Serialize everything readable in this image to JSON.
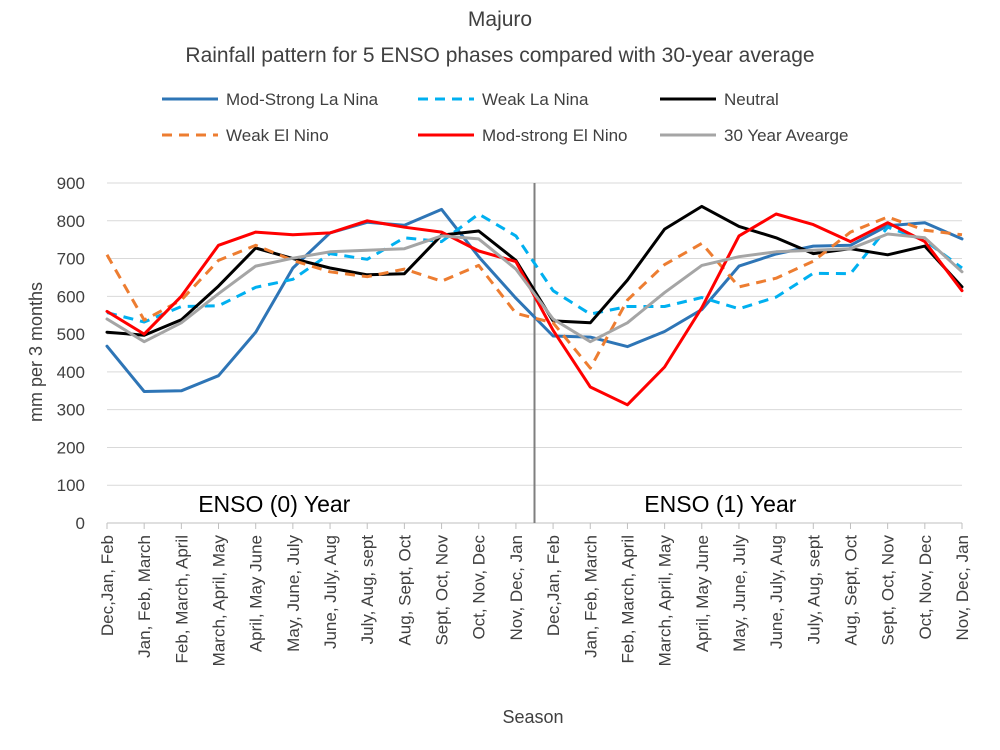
{
  "chart_data": {
    "type": "line",
    "title": "Majuro",
    "subtitle": "Rainfall pattern for 5 ENSO phases compared with 30-year average",
    "xlabel": "Season",
    "ylabel": "mm per 3 months",
    "ylim": [
      0,
      900
    ],
    "yticks": [
      0,
      100,
      200,
      300,
      400,
      500,
      600,
      700,
      800,
      900
    ],
    "grid": true,
    "legend_position": "top",
    "categories": [
      "Dec,Jan, Feb",
      "Jan, Feb, March",
      "Feb, March, April",
      "March, April, May",
      "April, May June",
      "May, June, July",
      "June, July, Aug",
      "July, Aug, sept",
      "Aug, Sept, Oct",
      "Sept, Oct, Nov",
      "Oct, Nov, Dec",
      "Nov, Dec, Jan",
      "Dec,Jan, Feb",
      "Jan, Feb, March",
      "Feb, March, April",
      "March, April, May",
      "April, May June",
      "May, June, July",
      "June, July, Aug",
      "July, Aug, sept",
      "Aug, Sept, Oct",
      "Sept, Oct, Nov",
      "Oct, Nov, Dec",
      "Nov, Dec, Jan"
    ],
    "annotations": [
      {
        "text": "ENSO (0) Year",
        "category_index": 4.5
      },
      {
        "text": "ENSO (1) Year",
        "category_index": 16.5
      }
    ],
    "divider_between_categories": [
      11,
      12
    ],
    "series": [
      {
        "name": "Mod-Strong La Nina",
        "color": "#2E75B6",
        "dash": "solid",
        "values": [
          468,
          348,
          350,
          390,
          505,
          675,
          768,
          796,
          788,
          830,
          705,
          595,
          495,
          492,
          467,
          507,
          565,
          680,
          712,
          733,
          735,
          787,
          795,
          752
        ]
      },
      {
        "name": "Weak La Nina",
        "color": "#00B0F0",
        "dash": "dashed",
        "values": [
          557,
          532,
          573,
          575,
          624,
          645,
          713,
          698,
          755,
          745,
          818,
          760,
          615,
          553,
          573,
          573,
          597,
          567,
          598,
          661,
          660,
          783,
          748,
          675
        ]
      },
      {
        "name": "Neutral",
        "color": "#000000",
        "dash": "solid",
        "values": [
          505,
          497,
          538,
          627,
          728,
          700,
          675,
          657,
          660,
          762,
          773,
          695,
          535,
          530,
          643,
          778,
          838,
          785,
          755,
          713,
          726,
          710,
          733,
          625
        ]
      },
      {
        "name": "Weak El Nino",
        "color": "#ED7D31",
        "dash": "dashed",
        "values": [
          710,
          537,
          590,
          695,
          735,
          695,
          665,
          652,
          672,
          640,
          682,
          555,
          530,
          410,
          590,
          684,
          740,
          625,
          648,
          693,
          770,
          810,
          775,
          763
        ]
      },
      {
        "name": "Mod-strong El Nino",
        "color": "#FF0000",
        "dash": "solid",
        "values": [
          560,
          500,
          600,
          735,
          770,
          763,
          768,
          800,
          783,
          770,
          720,
          692,
          510,
          360,
          313,
          413,
          570,
          760,
          818,
          790,
          745,
          795,
          745,
          615
        ]
      },
      {
        "name": "30 Year Avearge",
        "color": "#A5A5A5",
        "dash": "solid",
        "values": [
          540,
          480,
          530,
          607,
          680,
          701,
          718,
          722,
          726,
          760,
          752,
          672,
          540,
          480,
          530,
          610,
          682,
          705,
          718,
          722,
          726,
          765,
          755,
          665
        ]
      }
    ]
  }
}
